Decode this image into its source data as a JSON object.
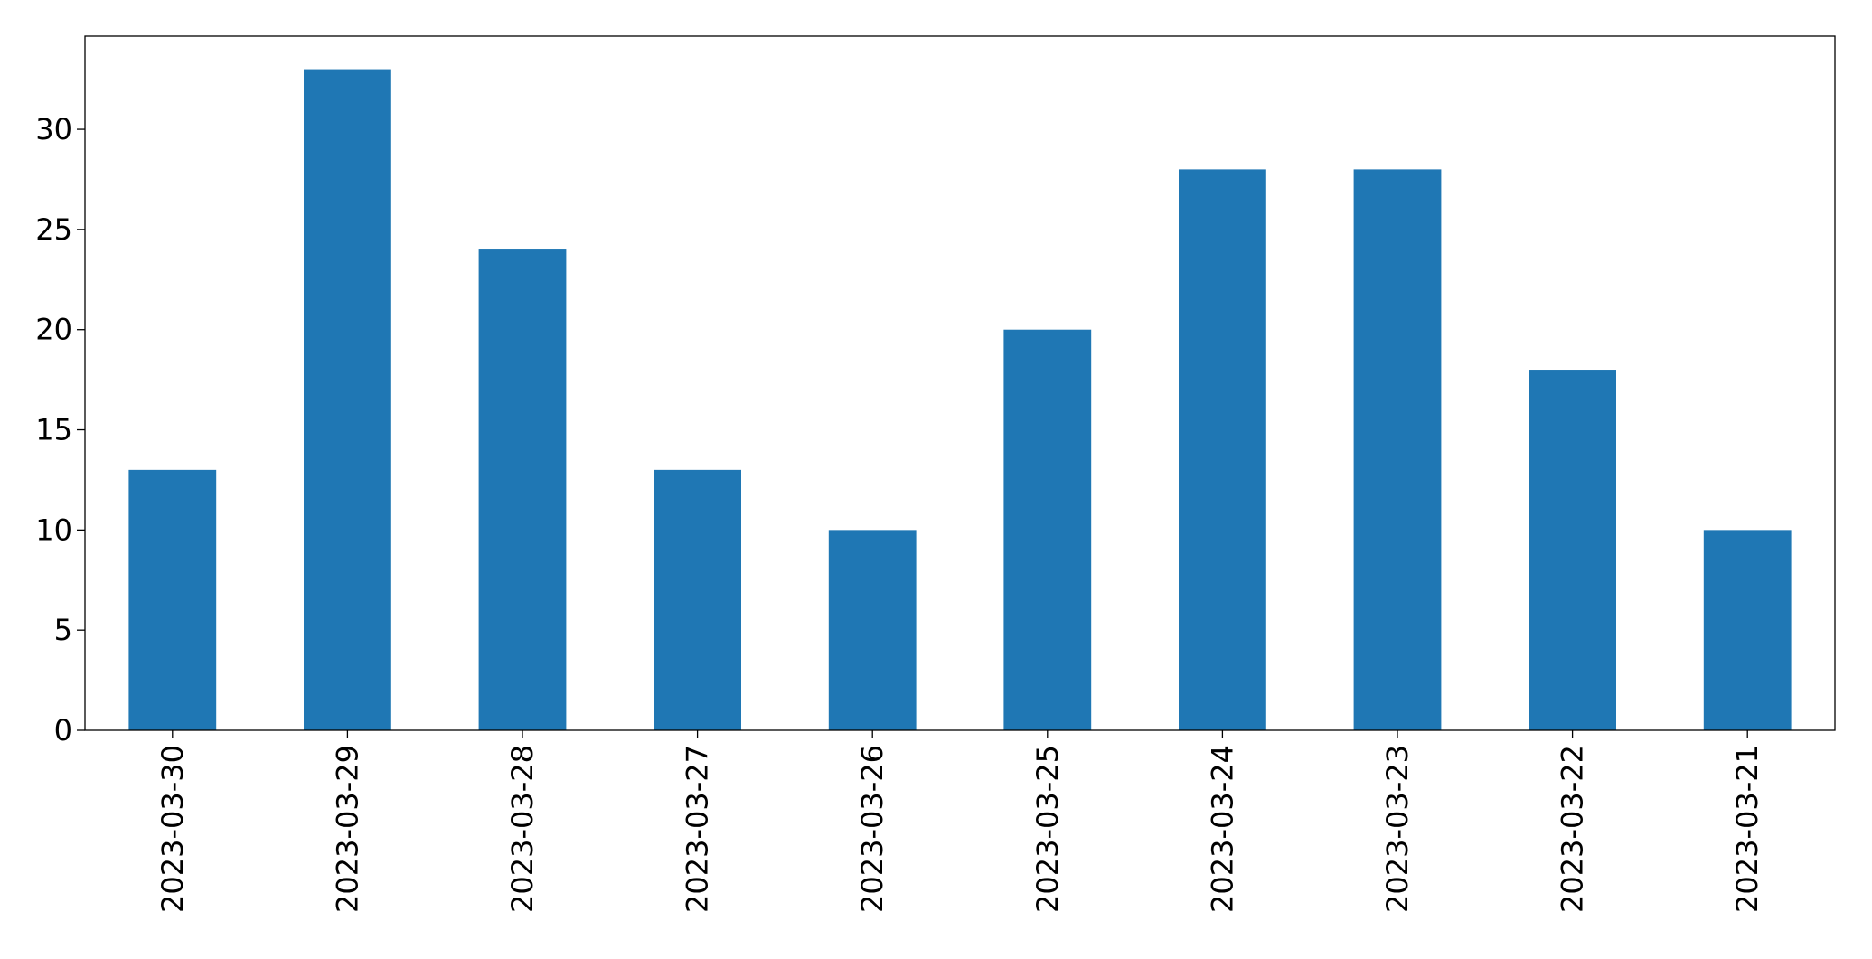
{
  "chart_data": {
    "type": "bar",
    "categories": [
      "2023-03-30",
      "2023-03-29",
      "2023-03-28",
      "2023-03-27",
      "2023-03-26",
      "2023-03-25",
      "2023-03-24",
      "2023-03-23",
      "2023-03-22",
      "2023-03-21"
    ],
    "values": [
      13,
      33,
      24,
      13,
      10,
      20,
      28,
      28,
      18,
      10
    ],
    "color": "#1f77b4",
    "ylim": [
      0,
      34.65
    ],
    "yticks": [
      0,
      5,
      10,
      15,
      20,
      25,
      30
    ],
    "grid": false
  }
}
